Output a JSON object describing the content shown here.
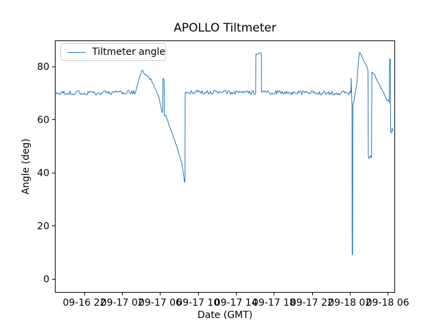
{
  "chart_data": {
    "type": "line",
    "title": "APOLLO Tiltmeter",
    "xlabel": "Date (GMT)",
    "ylabel": "Angle (deg)",
    "legend": {
      "label": "Tiltmeter angle",
      "position": "upper left"
    },
    "line_color": "#1f77b4",
    "background_color": "#ffffff",
    "grid": false,
    "x_tick_labels": [
      "09-16 22",
      "09-17 02",
      "09-17 06",
      "09-17 10",
      "09-17 14",
      "09-17 18",
      "09-17 22",
      "09-18 02",
      "09-18 06"
    ],
    "x_tick_hours": [
      0,
      4,
      8,
      12,
      16,
      20,
      24,
      28,
      32
    ],
    "x_axis_note": "hours relative to 09-16 22:00 GMT",
    "xlim_hours": [
      -3.11,
      32.79
    ],
    "y_ticks": [
      0,
      20,
      40,
      60,
      80
    ],
    "ylim": [
      -5.2,
      89.8
    ],
    "series": [
      {
        "name": "Tiltmeter angle",
        "points_format": [
          "hours_since_09-16_22:00_GMT",
          "angle_deg",
          "noise_amplitude_to_next_point"
        ],
        "points": [
          [
            -3.11,
            69.9,
            0.85
          ],
          [
            5.4,
            70.2,
            0
          ],
          [
            5.55,
            72.5,
            0.3
          ],
          [
            6.05,
            78.4,
            0.5
          ],
          [
            6.55,
            76.8,
            0.5
          ],
          [
            7.1,
            74.6,
            0.45
          ],
          [
            7.6,
            70.8,
            0.3
          ],
          [
            7.9,
            68.0,
            0.3
          ],
          [
            8.2,
            62.5,
            0
          ],
          [
            8.26,
            63.0,
            0
          ],
          [
            8.3,
            75.6,
            0.3
          ],
          [
            8.42,
            74.9,
            0
          ],
          [
            8.45,
            61.3,
            0
          ],
          [
            8.6,
            61.6,
            0.4
          ],
          [
            9.1,
            56.5,
            0.4
          ],
          [
            9.7,
            50.5,
            0.4
          ],
          [
            10.25,
            44.0,
            0.4
          ],
          [
            10.5,
            38.5,
            0
          ],
          [
            10.58,
            36.2,
            0
          ],
          [
            10.62,
            37.4,
            0
          ],
          [
            10.64,
            70.4,
            0.85
          ],
          [
            18.08,
            70.1,
            0
          ],
          [
            18.1,
            84.7,
            0.35
          ],
          [
            18.68,
            84.9,
            0
          ],
          [
            18.7,
            70.2,
            0.85
          ],
          [
            28.12,
            70.0,
            0
          ],
          [
            28.16,
            75.6,
            0
          ],
          [
            28.2,
            70.0,
            0
          ],
          [
            28.24,
            65.6,
            0
          ],
          [
            28.26,
            9.2,
            0
          ],
          [
            28.3,
            9.0,
            0
          ],
          [
            28.33,
            65.5,
            0
          ],
          [
            28.45,
            66.8,
            0.3
          ],
          [
            28.75,
            73.5,
            0.3
          ],
          [
            28.95,
            83.0,
            0
          ],
          [
            29.05,
            85.4,
            0.45
          ],
          [
            29.35,
            83.2,
            0.45
          ],
          [
            29.75,
            80.6,
            0.4
          ],
          [
            29.93,
            78.4,
            0
          ],
          [
            29.96,
            46.5,
            0
          ],
          [
            30.05,
            45.2,
            0
          ],
          [
            30.18,
            46.4,
            0
          ],
          [
            30.3,
            45.6,
            0
          ],
          [
            30.34,
            77.9,
            0
          ],
          [
            30.55,
            77.2,
            0.35
          ],
          [
            31.0,
            74.2,
            0.35
          ],
          [
            31.45,
            70.8,
            0.35
          ],
          [
            31.8,
            68.3,
            0.3
          ],
          [
            31.95,
            67.1,
            0.3
          ],
          [
            32.1,
            67.4,
            0
          ],
          [
            32.18,
            66.2,
            0
          ],
          [
            32.22,
            83.0,
            0
          ],
          [
            32.28,
            82.6,
            0
          ],
          [
            32.33,
            55.3,
            0
          ],
          [
            32.42,
            54.9,
            0
          ],
          [
            32.47,
            56.7,
            0
          ],
          [
            32.52,
            56.4,
            0
          ],
          [
            32.6,
            55.6,
            0
          ]
        ]
      }
    ]
  }
}
